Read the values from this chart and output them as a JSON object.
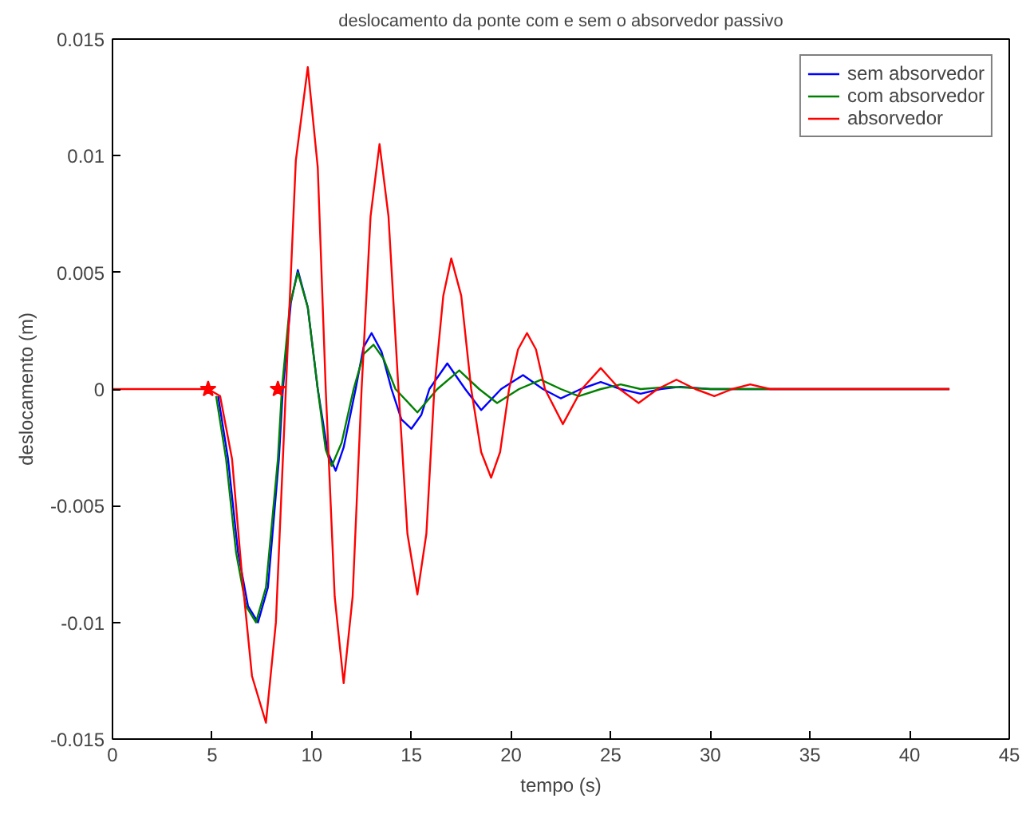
{
  "chart_data": {
    "type": "line",
    "title": "deslocamento da ponte com e sem o absorvedor passivo",
    "xlabel": "tempo (s)",
    "ylabel": "deslocamento (m)",
    "xlim": [
      0,
      45
    ],
    "ylim": [
      -0.015,
      0.015
    ],
    "xticks": [
      0,
      5,
      10,
      15,
      20,
      25,
      30,
      35,
      40,
      45
    ],
    "yticks": [
      -0.015,
      -0.01,
      -0.005,
      0,
      0.005,
      0.01,
      0.015
    ],
    "grid": false,
    "legend": "top right",
    "line_style": "solid",
    "series": [
      {
        "name": "sem absorvedor",
        "color": "#0000ff",
        "x": [
          5.3,
          5.8,
          6.3,
          6.8,
          7.3,
          7.8,
          8.35,
          8.55,
          8.95,
          9.3,
          9.8,
          10.3,
          10.8,
          11.2,
          11.6,
          12.2,
          12.6,
          13.0,
          13.5,
          14.0,
          14.5,
          15.0,
          15.5,
          15.9,
          16.8,
          17.7,
          18.5,
          19.5,
          20.6,
          21.6,
          22.5,
          23.5,
          24.5,
          25.5,
          26.5,
          27.5,
          28.5,
          30,
          42
        ],
        "values": [
          -0.0003,
          -0.003,
          -0.007,
          -0.0093,
          -0.01,
          -0.0085,
          -0.003,
          0,
          0.0037,
          0.0051,
          0.0035,
          0,
          -0.0027,
          -0.0035,
          -0.0025,
          0,
          0.0018,
          0.0024,
          0.0016,
          0,
          -0.0013,
          -0.0017,
          -0.0011,
          0,
          0.0011,
          0,
          -0.0009,
          0,
          0.0006,
          0,
          -0.0004,
          0,
          0.0003,
          0,
          -0.0002,
          0,
          0.0001,
          0,
          0
        ]
      },
      {
        "name": "com absorvedor",
        "color": "#008000",
        "x": [
          5.2,
          5.7,
          6.2,
          6.7,
          7.2,
          7.7,
          8.3,
          8.5,
          8.9,
          9.3,
          9.8,
          10.3,
          10.7,
          11.0,
          11.5,
          12.1,
          12.6,
          13.1,
          13.6,
          14.2,
          15.3,
          16.3,
          17.4,
          18.4,
          19.3,
          20.4,
          21.5,
          22.5,
          23.4,
          24.5,
          25.5,
          26.5,
          28,
          30,
          42
        ],
        "values": [
          -0.0003,
          -0.003,
          -0.007,
          -0.0093,
          -0.01,
          -0.0085,
          -0.003,
          0,
          0.0036,
          0.005,
          0.0035,
          0,
          -0.0026,
          -0.0033,
          -0.0023,
          0,
          0.0015,
          0.0019,
          0.0013,
          0,
          -0.001,
          0,
          0.0008,
          0,
          -0.0006,
          0,
          0.0004,
          0,
          -0.0003,
          0,
          0.0002,
          0,
          0.0001,
          0,
          0
        ]
      },
      {
        "name": "absorvedor",
        "color": "#ff0000",
        "x": [
          0,
          4.8,
          5.4,
          6.0,
          6.5,
          7.0,
          7.7,
          8.2,
          8.7,
          9.2,
          9.8,
          10.3,
          10.7,
          11.15,
          11.6,
          12.05,
          12.5,
          12.95,
          13.4,
          13.85,
          14.35,
          14.8,
          15.3,
          15.75,
          16.15,
          16.6,
          17.0,
          17.5,
          18.0,
          18.5,
          19.0,
          19.45,
          19.9,
          20.35,
          20.8,
          21.25,
          21.7,
          22.6,
          23.55,
          24.5,
          25.45,
          26.4,
          27.35,
          28.3,
          29.25,
          30.2,
          31.1,
          32.0,
          33.0,
          42
        ],
        "values": [
          0,
          0,
          -0.0003,
          -0.003,
          -0.008,
          -0.0123,
          -0.0143,
          -0.01,
          0,
          0.0098,
          0.0138,
          0.0095,
          0,
          -0.0089,
          -0.0126,
          -0.0089,
          0,
          0.0074,
          0.0105,
          0.0074,
          0,
          -0.0062,
          -0.0088,
          -0.0062,
          0,
          0.004,
          0.0056,
          0.004,
          0,
          -0.0027,
          -0.0038,
          -0.0027,
          0,
          0.0017,
          0.0024,
          0.0017,
          0,
          -0.0015,
          0,
          0.0009,
          0,
          -0.0006,
          0,
          0.0004,
          0,
          -0.0003,
          0,
          0.0002,
          0,
          0
        ]
      },
      {
        "type": "scatter",
        "marker": "star",
        "color": "#ff0000",
        "x": [
          4.8,
          8.3
        ],
        "values": [
          0,
          0
        ]
      }
    ]
  }
}
